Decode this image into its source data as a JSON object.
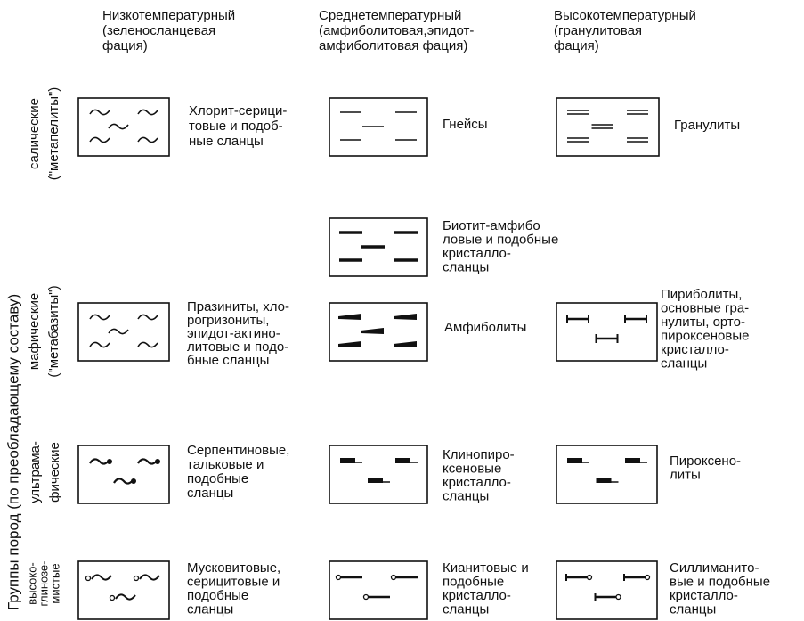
{
  "side_title": "Группы  пород  (по преобладающему составу)",
  "columns": [
    [
      "Низкотемпературный",
      "(зеленосланцевая",
      "фация)"
    ],
    [
      "Среднетемпературный",
      "(амфиболитовая,эпидот-",
      "амфиболитовая фация)"
    ],
    [
      "Высокотемпературный",
      "(гранулитовая",
      "фация)"
    ]
  ],
  "rows": [
    [
      "салические",
      "(\"метапелиты\")"
    ],
    [
      "мафические",
      "(\"метабазиты\")"
    ],
    [
      "ультрама-",
      "фические"
    ],
    [
      "высоко-",
      "глинозе-",
      "мистые"
    ]
  ],
  "entries": [
    [
      "Хлорит-серици-",
      "товые и подоб-",
      "ные сланцы"
    ],
    [
      "Гнейсы"
    ],
    [
      "Гранулиты"
    ],
    [
      "Биотит-амфибо",
      "ловые и подобные",
      "кристалло-",
      "сланцы"
    ],
    [
      "Празиниты, хло-",
      "рогризониты,",
      "эпидот-актино-",
      "литовые и подо-",
      "бные сланцы"
    ],
    [
      "Амфиболиты"
    ],
    [
      "Пириболиты,",
      "основные гра-",
      "нулиты, орто-",
      "пироксеновые",
      "кристалло-",
      "сланцы"
    ],
    [
      "Серпентиновые,",
      "тальковые и",
      "подобные",
      "сланцы"
    ],
    [
      "Клинопиро-",
      "ксеновые",
      "кристалло-",
      "сланцы"
    ],
    [
      "Пироксено-",
      "литы"
    ],
    [
      "Мусковитовые,",
      "серицитовые и",
      "подобные",
      "сланцы"
    ],
    [
      "Кианитовые и",
      "подобные",
      "кристалло-",
      "сланцы"
    ],
    [
      "Силлиманито-",
      "вые и подобные",
      "кристалло-",
      "сланцы"
    ]
  ]
}
